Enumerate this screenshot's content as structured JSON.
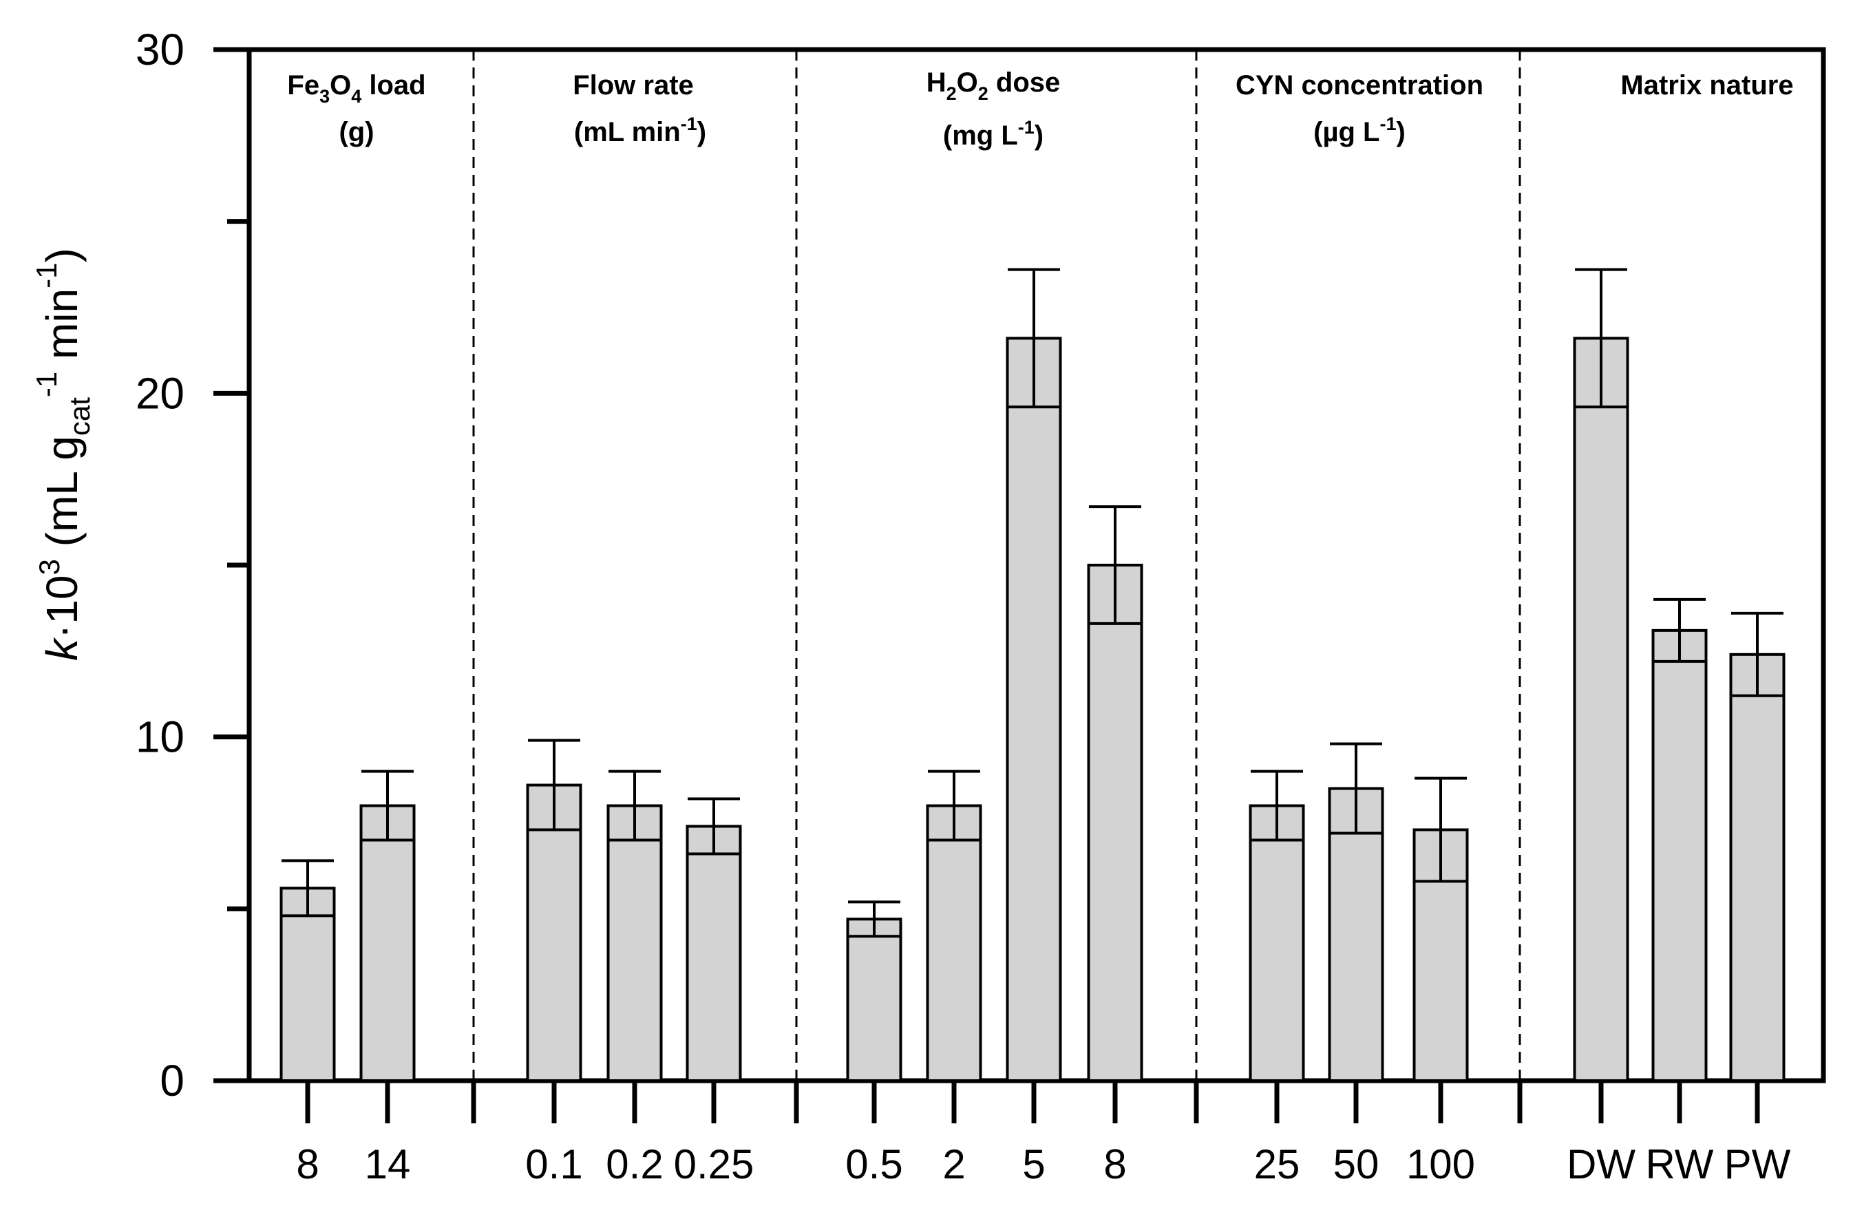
{
  "chart_data": {
    "type": "bar",
    "ylabel": {
      "k": "k",
      "dot": "·10",
      "exp3": "3",
      "paren_open": "(mL g",
      "sub_cat": "cat",
      "sup_minus1": "-1",
      "min_text": "min",
      "sup_minus1b": "-1",
      "paren_close": ")"
    },
    "ylim": [
      0,
      30
    ],
    "yticks": [
      0,
      10,
      20,
      30
    ],
    "yticks_minor": [
      5,
      15,
      25
    ],
    "bar_color": "#d3d3d3",
    "groups": [
      {
        "title_parts": {
          "a": "Fe",
          "b": "3",
          "c": "O",
          "d": "4",
          "e": " load"
        },
        "unit": "(g)",
        "categories": [
          "8",
          "14"
        ],
        "values": [
          5.6,
          8.0
        ],
        "errors": [
          0.8,
          1.0
        ]
      },
      {
        "title": "Flow rate",
        "unit_parts": {
          "a": "(mL min",
          "b": "-1",
          "c": ")"
        },
        "categories": [
          "0.1",
          "0.2",
          "0.25"
        ],
        "values": [
          8.6,
          8.0,
          7.4
        ],
        "errors": [
          1.3,
          1.0,
          0.8
        ]
      },
      {
        "title_parts": {
          "a": "H",
          "b": "2",
          "c": "O",
          "d": "2",
          "e": " dose"
        },
        "unit_parts": {
          "a": "(mg L",
          "b": "-1",
          "c": ")"
        },
        "categories": [
          "0.5",
          "2",
          "5",
          "8"
        ],
        "values": [
          4.7,
          8.0,
          21.6,
          15.0
        ],
        "errors": [
          0.5,
          1.0,
          2.0,
          1.7
        ]
      },
      {
        "title": "CYN concentration",
        "unit_parts": {
          "a": "(µg L",
          "b": "-1",
          "c": ")"
        },
        "categories": [
          "25",
          "50",
          "100"
        ],
        "values": [
          8.0,
          8.5,
          7.3
        ],
        "errors": [
          1.0,
          1.3,
          1.5
        ]
      },
      {
        "title": "Matrix nature",
        "categories": [
          "DW",
          "RW",
          "PW"
        ],
        "values": [
          21.6,
          13.1,
          12.4
        ],
        "errors": [
          2.0,
          0.9,
          1.2
        ]
      }
    ]
  }
}
